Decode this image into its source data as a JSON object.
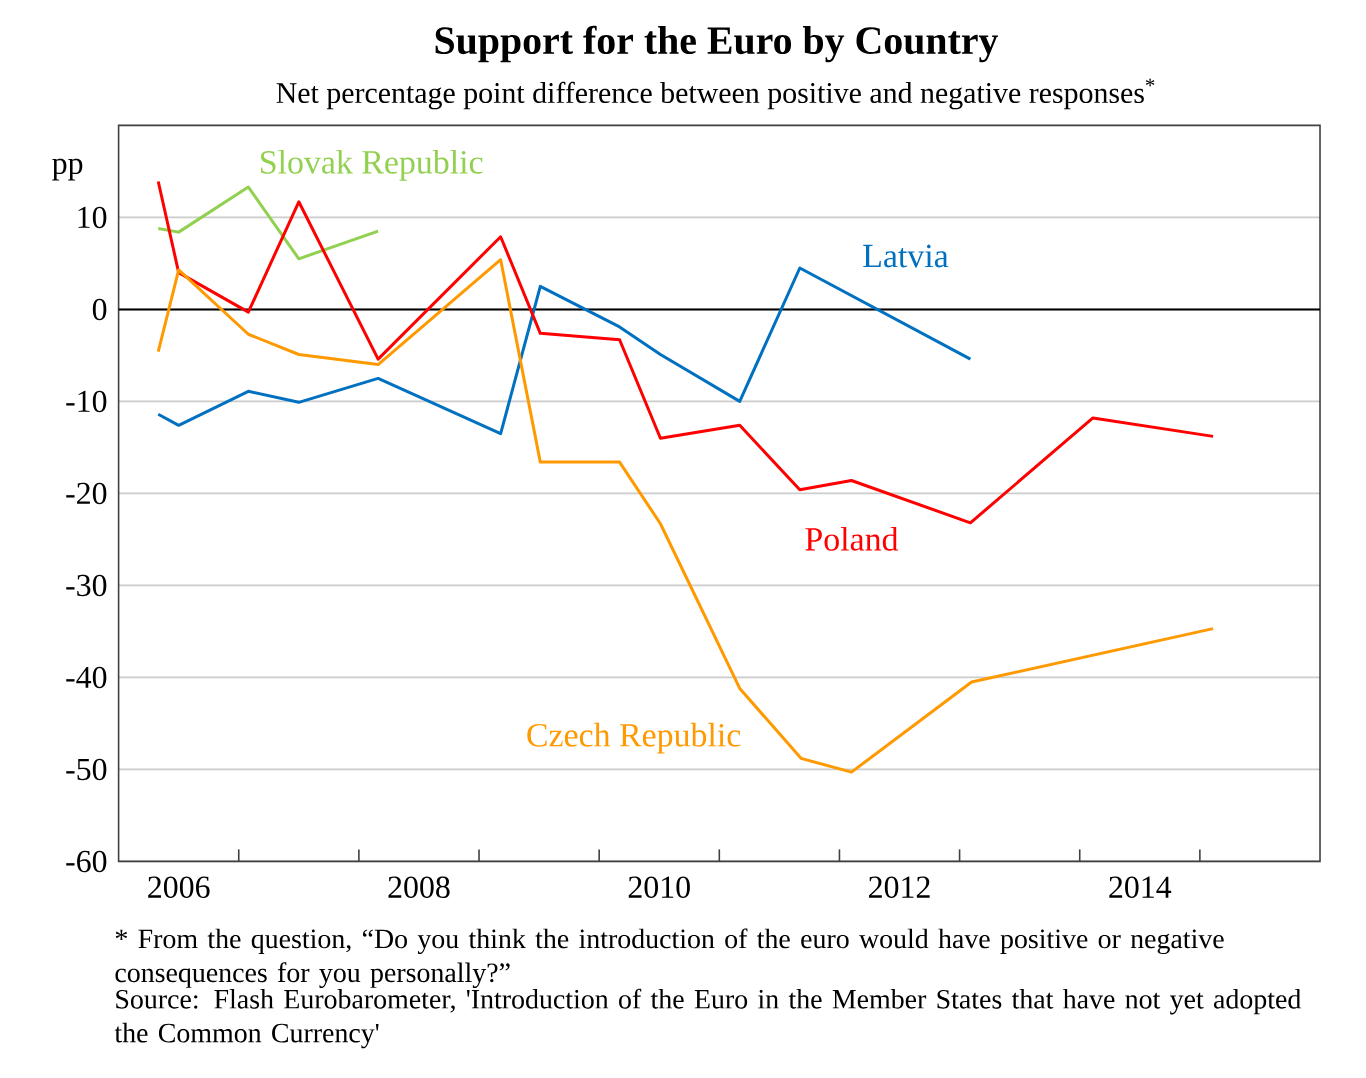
{
  "chart_data": {
    "type": "line",
    "title": "Support for the Euro by Country",
    "subtitle": "Net percentage point difference between positive and negative responses$^{*}$",
    "ylabel": "pp",
    "annotations": [
      "* From the question,  “Do you think the introduction of the euro would have positive or negative consequences for you personally?”",
      "Source: Flash Eurobarometer, 'Introduction of the Euro in the Member States that have not yet adopted the Common Currency'"
    ],
    "xlim": [
      2006,
      2016
    ],
    "ylim": [
      -60,
      20
    ],
    "xticks": [
      {
        "value": 2006.5,
        "label": "2006"
      },
      {
        "value": 2007,
        "label": null
      },
      {
        "value": 2008,
        "label": null
      },
      {
        "value": 2008.5,
        "label": "2008"
      },
      {
        "value": 2009,
        "label": null
      },
      {
        "value": 2010,
        "label": null
      },
      {
        "value": 2010.5,
        "label": "2010"
      },
      {
        "value": 2011,
        "label": null
      },
      {
        "value": 2012,
        "label": null
      },
      {
        "value": 2012.5,
        "label": "2012"
      },
      {
        "value": 2013,
        "label": null
      },
      {
        "value": 2014,
        "label": null
      },
      {
        "value": 2014.5,
        "label": "2014"
      },
      {
        "value": 2015,
        "label": null
      }
    ],
    "yticks": [
      -60,
      -50,
      -40,
      -30,
      -20,
      -10,
      0,
      10
    ],
    "grid": "y",
    "legend": false,
    "ref_lines": [
      {
        "axis": "y",
        "value": 0,
        "color": "#000000"
      }
    ],
    "series": [
      {
        "name": "Slovak Republic",
        "color": "#92d050",
        "x": [
          2006.33,
          2006.5,
          2007.08,
          2007.5,
          2008.16
        ],
        "values": [
          8.8,
          8.4,
          13.3,
          5.5,
          8.5
        ]
      },
      {
        "name": "Latvia",
        "color": "#0070c0",
        "x": [
          2006.33,
          2006.5,
          2007.08,
          2007.5,
          2008.16,
          2009.18,
          2009.51,
          2010.17,
          2010.51,
          2011.17,
          2011.67,
          2013.09
        ],
        "values": [
          -11.4,
          -12.6,
          -8.9,
          -10.1,
          -7.5,
          -13.5,
          2.5,
          -1.9,
          -4.9,
          -10.0,
          4.5,
          -5.4
        ]
      },
      {
        "name": "Poland",
        "color": "#ff0000",
        "x": [
          2006.33,
          2006.5,
          2007.08,
          2007.5,
          2008.16,
          2009.18,
          2009.51,
          2010.17,
          2010.51,
          2011.17,
          2011.67,
          2012.1,
          2013.09,
          2014.11,
          2015.11
        ],
        "values": [
          13.9,
          4.0,
          -0.3,
          11.7,
          -5.4,
          7.9,
          -2.6,
          -3.3,
          -14.0,
          -12.6,
          -19.6,
          -18.6,
          -23.2,
          -11.8,
          -13.8
        ]
      },
      {
        "name": "Czech Republic",
        "color": "#ff9900",
        "x": [
          2006.33,
          2006.5,
          2007.08,
          2007.5,
          2008.16,
          2009.18,
          2009.51,
          2010.17,
          2010.51,
          2011.17,
          2011.68,
          2012.1,
          2013.1,
          2015.11
        ],
        "values": [
          -4.6,
          4.3,
          -2.7,
          -4.9,
          -6.0,
          5.4,
          -16.6,
          -16.6,
          -23.3,
          -41.2,
          -48.8,
          -50.3,
          -40.5,
          -34.7
        ]
      }
    ]
  }
}
